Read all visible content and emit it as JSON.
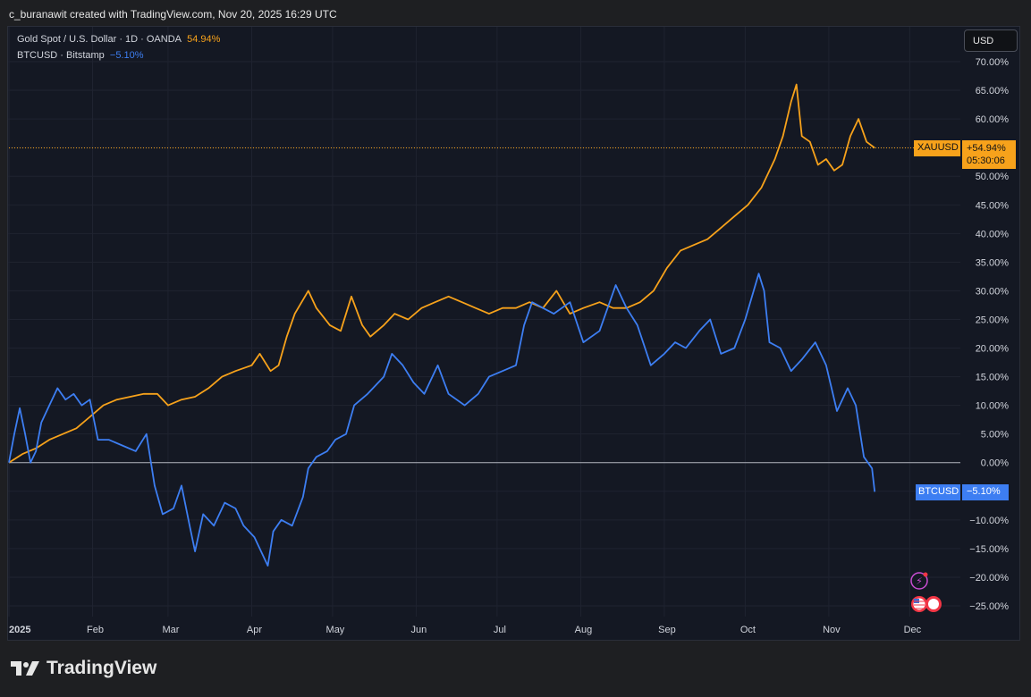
{
  "header": {
    "text": "c_buranawit created with TradingView.com, Nov 20, 2025 16:29 UTC"
  },
  "brand": {
    "name": "TradingView"
  },
  "currency_button": {
    "label": "USD"
  },
  "legend": {
    "gold": {
      "name": "Gold Spot / U.S. Dollar · 1D · OANDA",
      "value": "54.94%"
    },
    "btc": {
      "name": "BTCUSD · Bitstamp",
      "value": "−5.10%"
    }
  },
  "tags": {
    "gold": {
      "symbol": "XAUUSD",
      "value": "+54.94%",
      "countdown": "05:30:06"
    },
    "btc": {
      "symbol": "BTCUSD",
      "value": "−5.10%"
    }
  },
  "colors": {
    "gold": "#f7a21b",
    "btc": "#3d7ef2",
    "background": "#141823"
  },
  "icons": [
    "lightning-icon",
    "us-flag-icon"
  ],
  "chart_data": {
    "type": "line",
    "ylabel": "",
    "ylim": [
      -27.5,
      72.5
    ],
    "y_ticks": [
      70,
      65,
      60,
      55,
      50,
      45,
      40,
      35,
      30,
      25,
      20,
      15,
      10,
      5,
      0,
      -5,
      -10,
      -15,
      -20,
      -25
    ],
    "y_tick_labels": [
      "70.00%",
      "65.00%",
      "60.00%",
      "55.00%",
      "50.00%",
      "45.00%",
      "40.00%",
      "35.00%",
      "30.00%",
      "25.00%",
      "20.00%",
      "15.00%",
      "10.00%",
      "5.00%",
      "0.00%",
      "−5.00%",
      "−10.00%",
      "−15.00%",
      "−20.00%",
      "−25.00%"
    ],
    "x_ticks": [
      "2025-01-01",
      "2025-02-01",
      "2025-03-01",
      "2025-04-01",
      "2025-05-01",
      "2025-06-01",
      "2025-07-01",
      "2025-08-01",
      "2025-09-01",
      "2025-10-01",
      "2025-11-01",
      "2025-12-01"
    ],
    "x_tick_labels": [
      "2025",
      "Feb",
      "Mar",
      "Apr",
      "May",
      "Jun",
      "Jul",
      "Aug",
      "Sep",
      "Oct",
      "Nov",
      "Dec"
    ],
    "xlim": [
      "2025-01-01",
      "2025-12-05"
    ],
    "baseline": 0,
    "grid": true,
    "series": [
      {
        "name": "Gold Spot / U.S. Dollar",
        "color": "#f7a21b",
        "points": [
          [
            "2025-01-01",
            0
          ],
          [
            "2025-01-06",
            1.5
          ],
          [
            "2025-01-11",
            2.5
          ],
          [
            "2025-01-16",
            4
          ],
          [
            "2025-01-21",
            5
          ],
          [
            "2025-01-26",
            6
          ],
          [
            "2025-01-31",
            8
          ],
          [
            "2025-02-05",
            10
          ],
          [
            "2025-02-10",
            11
          ],
          [
            "2025-02-15",
            11.5
          ],
          [
            "2025-02-20",
            12
          ],
          [
            "2025-02-25",
            12
          ],
          [
            "2025-03-01",
            10
          ],
          [
            "2025-03-06",
            11
          ],
          [
            "2025-03-11",
            11.5
          ],
          [
            "2025-03-16",
            13
          ],
          [
            "2025-03-21",
            15
          ],
          [
            "2025-03-26",
            16
          ],
          [
            "2025-04-01",
            17
          ],
          [
            "2025-04-04",
            19
          ],
          [
            "2025-04-08",
            16
          ],
          [
            "2025-04-11",
            17
          ],
          [
            "2025-04-14",
            22
          ],
          [
            "2025-04-17",
            26
          ],
          [
            "2025-04-22",
            30
          ],
          [
            "2025-04-25",
            27
          ],
          [
            "2025-04-30",
            24
          ],
          [
            "2025-05-04",
            23
          ],
          [
            "2025-05-08",
            29
          ],
          [
            "2025-05-12",
            24
          ],
          [
            "2025-05-15",
            22
          ],
          [
            "2025-05-20",
            24
          ],
          [
            "2025-05-24",
            26
          ],
          [
            "2025-05-29",
            25
          ],
          [
            "2025-06-03",
            27
          ],
          [
            "2025-06-08",
            28
          ],
          [
            "2025-06-13",
            29
          ],
          [
            "2025-06-18",
            28
          ],
          [
            "2025-06-23",
            27
          ],
          [
            "2025-06-28",
            26
          ],
          [
            "2025-07-03",
            27
          ],
          [
            "2025-07-08",
            27
          ],
          [
            "2025-07-13",
            28
          ],
          [
            "2025-07-18",
            27
          ],
          [
            "2025-07-23",
            30
          ],
          [
            "2025-07-28",
            26
          ],
          [
            "2025-08-02",
            27
          ],
          [
            "2025-08-08",
            28
          ],
          [
            "2025-08-13",
            27
          ],
          [
            "2025-08-18",
            27
          ],
          [
            "2025-08-23",
            28
          ],
          [
            "2025-08-28",
            30
          ],
          [
            "2025-09-02",
            34
          ],
          [
            "2025-09-07",
            37
          ],
          [
            "2025-09-12",
            38
          ],
          [
            "2025-09-17",
            39
          ],
          [
            "2025-09-22",
            41
          ],
          [
            "2025-09-27",
            43
          ],
          [
            "2025-10-02",
            45
          ],
          [
            "2025-10-07",
            48
          ],
          [
            "2025-10-12",
            53
          ],
          [
            "2025-10-15",
            57
          ],
          [
            "2025-10-18",
            63
          ],
          [
            "2025-10-20",
            66
          ],
          [
            "2025-10-22",
            57
          ],
          [
            "2025-10-25",
            56
          ],
          [
            "2025-10-28",
            52
          ],
          [
            "2025-10-31",
            53
          ],
          [
            "2025-11-03",
            51
          ],
          [
            "2025-11-06",
            52
          ],
          [
            "2025-11-09",
            57
          ],
          [
            "2025-11-12",
            60
          ],
          [
            "2025-11-15",
            56
          ],
          [
            "2025-11-18",
            54.94
          ]
        ]
      },
      {
        "name": "BTCUSD",
        "color": "#3d7ef2",
        "points": [
          [
            "2025-01-01",
            0
          ],
          [
            "2025-01-03",
            5
          ],
          [
            "2025-01-05",
            9.5
          ],
          [
            "2025-01-07",
            5
          ],
          [
            "2025-01-09",
            0
          ],
          [
            "2025-01-11",
            2
          ],
          [
            "2025-01-13",
            7
          ],
          [
            "2025-01-16",
            10
          ],
          [
            "2025-01-19",
            13
          ],
          [
            "2025-01-22",
            11
          ],
          [
            "2025-01-25",
            12
          ],
          [
            "2025-01-28",
            10
          ],
          [
            "2025-01-31",
            11
          ],
          [
            "2025-02-03",
            4
          ],
          [
            "2025-02-07",
            4
          ],
          [
            "2025-02-12",
            3
          ],
          [
            "2025-02-17",
            2
          ],
          [
            "2025-02-21",
            5
          ],
          [
            "2025-02-24",
            -4
          ],
          [
            "2025-02-27",
            -9
          ],
          [
            "2025-03-03",
            -8
          ],
          [
            "2025-03-06",
            -4
          ],
          [
            "2025-03-09",
            -11
          ],
          [
            "2025-03-11",
            -15.5
          ],
          [
            "2025-03-14",
            -9
          ],
          [
            "2025-03-18",
            -11
          ],
          [
            "2025-03-22",
            -7
          ],
          [
            "2025-03-26",
            -8
          ],
          [
            "2025-03-29",
            -11
          ],
          [
            "2025-04-02",
            -13
          ],
          [
            "2025-04-07",
            -18
          ],
          [
            "2025-04-09",
            -12
          ],
          [
            "2025-04-12",
            -10
          ],
          [
            "2025-04-16",
            -11
          ],
          [
            "2025-04-20",
            -6
          ],
          [
            "2025-04-22",
            -1
          ],
          [
            "2025-04-25",
            1
          ],
          [
            "2025-04-29",
            2
          ],
          [
            "2025-05-02",
            4
          ],
          [
            "2025-05-06",
            5
          ],
          [
            "2025-05-09",
            10
          ],
          [
            "2025-05-14",
            12
          ],
          [
            "2025-05-20",
            15
          ],
          [
            "2025-05-23",
            19
          ],
          [
            "2025-05-27",
            17
          ],
          [
            "2025-05-31",
            14
          ],
          [
            "2025-06-04",
            12
          ],
          [
            "2025-06-09",
            17
          ],
          [
            "2025-06-13",
            12
          ],
          [
            "2025-06-19",
            10
          ],
          [
            "2025-06-24",
            12
          ],
          [
            "2025-06-28",
            15
          ],
          [
            "2025-07-03",
            16
          ],
          [
            "2025-07-08",
            17
          ],
          [
            "2025-07-11",
            24
          ],
          [
            "2025-07-14",
            28
          ],
          [
            "2025-07-18",
            27
          ],
          [
            "2025-07-22",
            26
          ],
          [
            "2025-07-28",
            28
          ],
          [
            "2025-08-02",
            21
          ],
          [
            "2025-08-08",
            23
          ],
          [
            "2025-08-14",
            31
          ],
          [
            "2025-08-18",
            27
          ],
          [
            "2025-08-22",
            24
          ],
          [
            "2025-08-27",
            17
          ],
          [
            "2025-09-01",
            19
          ],
          [
            "2025-09-05",
            21
          ],
          [
            "2025-09-09",
            20
          ],
          [
            "2025-09-14",
            23
          ],
          [
            "2025-09-18",
            25
          ],
          [
            "2025-09-22",
            19
          ],
          [
            "2025-09-27",
            20
          ],
          [
            "2025-10-01",
            25
          ],
          [
            "2025-10-06",
            33
          ],
          [
            "2025-10-08",
            30
          ],
          [
            "2025-10-10",
            21
          ],
          [
            "2025-10-14",
            20
          ],
          [
            "2025-10-18",
            16
          ],
          [
            "2025-10-22",
            18
          ],
          [
            "2025-10-27",
            21
          ],
          [
            "2025-10-31",
            17
          ],
          [
            "2025-11-04",
            9
          ],
          [
            "2025-11-08",
            13
          ],
          [
            "2025-11-11",
            10
          ],
          [
            "2025-11-14",
            1
          ],
          [
            "2025-11-17",
            -1
          ],
          [
            "2025-11-18",
            -5.1
          ]
        ]
      }
    ]
  }
}
